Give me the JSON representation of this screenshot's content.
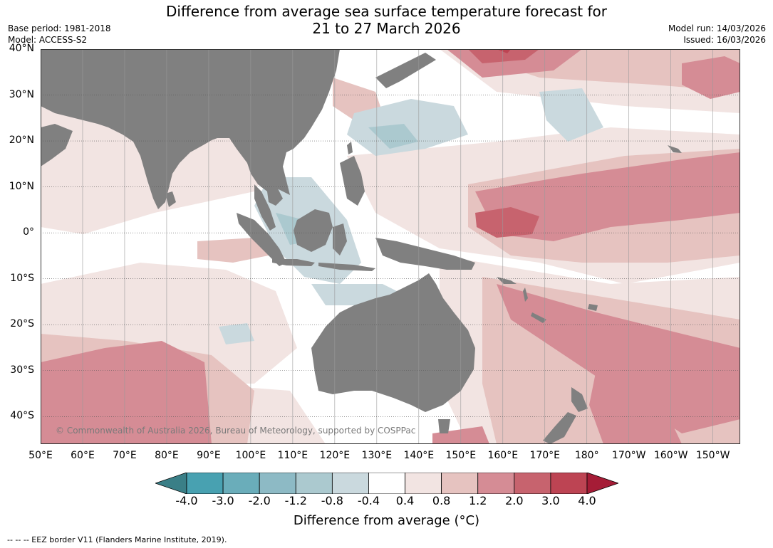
{
  "header": {
    "title_line1": "Difference from average sea surface temperature forecast for",
    "title_line2": "21 to 27 March 2026",
    "base_period": "Base period: 1981-2018",
    "model": "Model: ACCESS-S2",
    "model_run": "Model run: 14/03/2026",
    "issued": "Issued: 16/03/2026"
  },
  "map": {
    "lat_labels": [
      "40°N",
      "30°N",
      "20°N",
      "10°N",
      "0°",
      "10°S",
      "20°S",
      "30°S",
      "40°S"
    ],
    "lat_values": [
      40,
      30,
      20,
      10,
      0,
      -10,
      -20,
      -30,
      -40
    ],
    "lon_labels": [
      "50°E",
      "60°E",
      "70°E",
      "80°E",
      "90°E",
      "100°E",
      "110°E",
      "120°E",
      "130°E",
      "140°E",
      "150°E",
      "160°E",
      "170°E",
      "180°",
      "170°W",
      "160°W",
      "150°W"
    ],
    "lon_values": [
      50,
      60,
      70,
      80,
      90,
      100,
      110,
      120,
      130,
      140,
      150,
      160,
      170,
      180,
      190,
      200,
      210
    ],
    "lon_range": [
      50,
      216.5
    ],
    "lat_range": [
      -46,
      40
    ],
    "land_color": "#808080",
    "copyright": "© Commonwealth of Australia 2026, Bureau of Meteorology, supported by COSPPac"
  },
  "colorbar": {
    "ticks": [
      "-4.0",
      "-3.0",
      "-2.0",
      "-1.2",
      "-0.8",
      "-0.4",
      "0.4",
      "0.8",
      "1.2",
      "2.0",
      "3.0",
      "4.0"
    ],
    "colors": [
      "#3a7f87",
      "#48a1b1",
      "#6aadba",
      "#8dbac5",
      "#abc9cf",
      "#cad9de",
      "#ffffff",
      "#f2e4e2",
      "#e6c3c0",
      "#d58c95",
      "#c7636e",
      "#bd4453",
      "#a51c36"
    ],
    "title": "Difference from average (°C)"
  },
  "footer": "--  --  -- EEZ border V11 (Flanders Marine Institute, 2019)."
}
